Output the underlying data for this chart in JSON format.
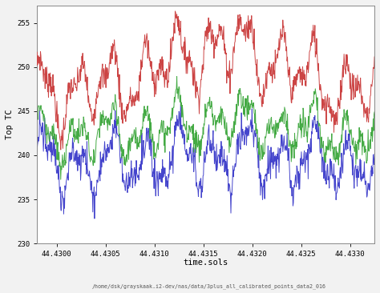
{
  "xlabel": "time.sols",
  "xlabel2": "/home/dsk/grayskaak.i2-dev/nas/data/3plus_all_calibrated_points_data2_016",
  "ylabel": "Top TC",
  "xmin": 44.4298,
  "xmax": 44.43325,
  "ymin": 230,
  "ymax": 257,
  "yticks": [
    230,
    235,
    240,
    245,
    250,
    255
  ],
  "xticks": [
    44.43,
    44.4305,
    44.431,
    44.4315,
    44.432,
    44.4325,
    44.433
  ],
  "xtick_labels": [
    "44.4300",
    "44.4305",
    "44.4310",
    "44.4315",
    "44.4320",
    "44.4325",
    "44.4330"
  ],
  "colors": [
    "#cc4444",
    "#44aa44",
    "#4444cc"
  ],
  "background": "#f2f2f2",
  "plot_bg": "white",
  "n_points": 800,
  "red_base": 247.0,
  "green_base": 242.0,
  "blue_base": 239.0,
  "linewidth": 0.7,
  "seed": 7
}
